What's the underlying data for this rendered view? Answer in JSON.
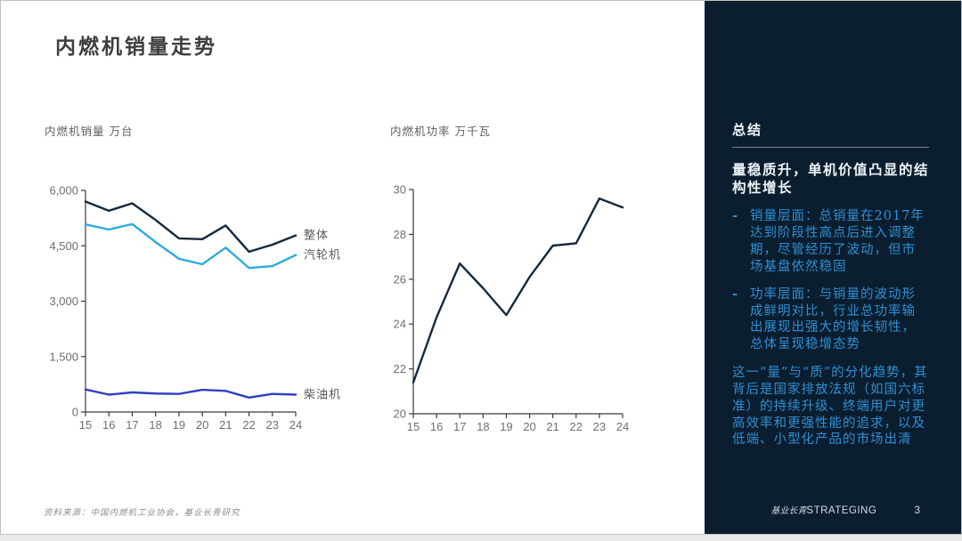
{
  "slide": {
    "title": "内燃机销量走势",
    "source_note": "资料来源：中国内燃机工业协会，基业长青研究"
  },
  "sidebar": {
    "heading": "总结",
    "summary_title": "量稳质升，单机价值凸显的结构性增长",
    "bullets": [
      {
        "marker": "-",
        "text": "销量层面：总销量在2017年达到阶段性高点后进入调整期，尽管经历了波动，但市场基盘依然稳固"
      },
      {
        "marker": "-",
        "text": "功率层面：与销量的波动形成鲜明对比，行业总功率输出展现出强大的增长韧性，总体呈现稳增态势"
      }
    ],
    "closing": "这一“量”与“质”的分化趋势，其背后是国家排放法规（如国六标准）的持续升级、终端用户对更高效率和更强性能的追求，以及低端、小型化产品的市场出清",
    "footer": {
      "brand_cn": "基业长青",
      "brand_en": "STRATEGING",
      "page_number": "3"
    },
    "colors": {
      "background": "#0a1e30",
      "accent_blue": "#2f8fd2",
      "heading_white": "#f5f8fa"
    }
  },
  "chart_data": [
    {
      "type": "line",
      "title": "内燃机销量 万台",
      "x": [
        "15",
        "16",
        "17",
        "18",
        "19",
        "20",
        "21",
        "22",
        "23",
        "24"
      ],
      "series": [
        {
          "name": "整体",
          "color": "#14293c",
          "values": [
            5700,
            5450,
            5650,
            5200,
            4700,
            4680,
            5050,
            4340,
            4530,
            4780
          ]
        },
        {
          "name": "汽轮机",
          "color": "#2fabdd",
          "values": [
            5080,
            4940,
            5090,
            4600,
            4150,
            4000,
            4450,
            3900,
            3950,
            4250
          ]
        },
        {
          "name": "柴油机",
          "color": "#2c40c3",
          "values": [
            610,
            470,
            530,
            500,
            490,
            600,
            570,
            390,
            490,
            470
          ]
        }
      ],
      "ylim": [
        0,
        6000
      ],
      "yticks": [
        0,
        1500,
        3000,
        4500,
        6000
      ],
      "ytick_labels": [
        "0",
        "1,500",
        "3,000",
        "4,500",
        "6,000"
      ],
      "grid": false,
      "end_labels": true,
      "legend_position": "right-of-line-ends"
    },
    {
      "type": "line",
      "title": "内燃机功率 万千瓦",
      "x": [
        "15",
        "16",
        "17",
        "18",
        "19",
        "20",
        "21",
        "22",
        "23",
        "24"
      ],
      "series": [
        {
          "name": "内燃机功率",
          "color": "#14293c",
          "values": [
            21.4,
            24.3,
            26.7,
            25.6,
            24.4,
            26.1,
            27.5,
            27.6,
            29.6,
            29.2
          ]
        }
      ],
      "ylim": [
        20,
        30
      ],
      "yticks": [
        20,
        22,
        24,
        26,
        28,
        30
      ],
      "ytick_labels": [
        "20",
        "22",
        "24",
        "26",
        "28",
        "30"
      ],
      "grid": false,
      "end_labels": false,
      "legend_position": "none"
    }
  ]
}
